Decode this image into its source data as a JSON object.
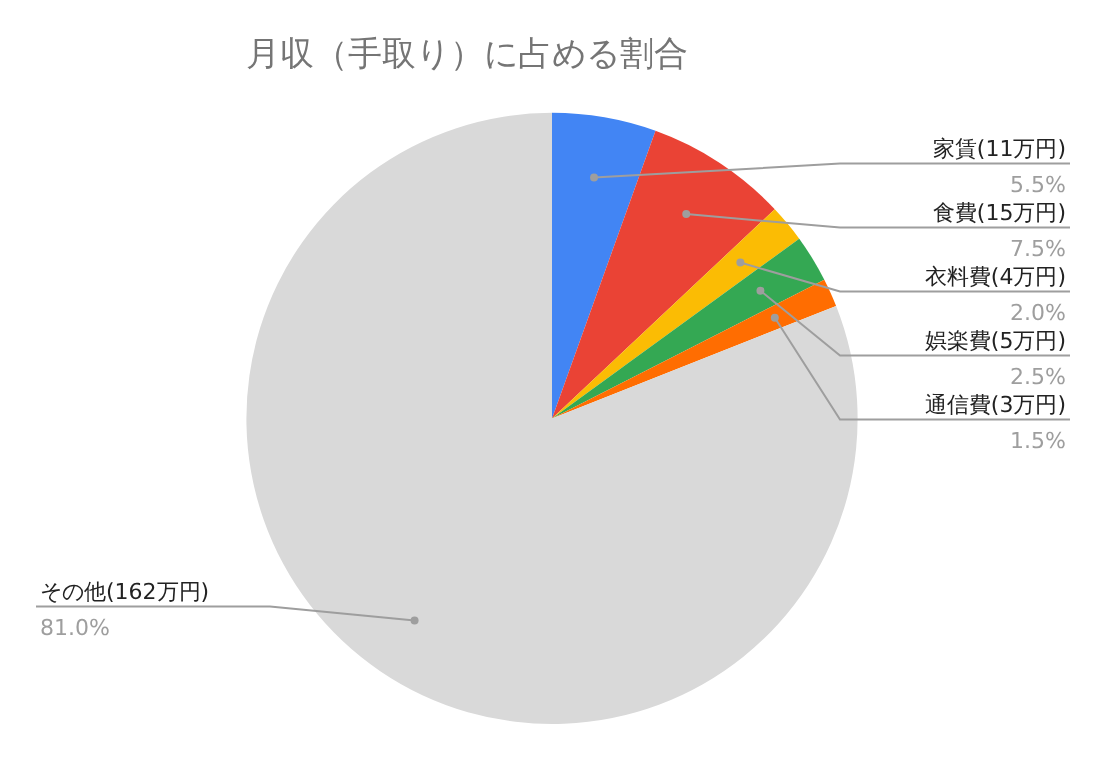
{
  "chart_data": {
    "type": "pie",
    "title": "月収（手取り）に占める割合",
    "categories": [
      "家賃(11万円)",
      "食費(15万円)",
      "衣料費(4万円)",
      "娯楽費(5万円)",
      "通信費(3万円)",
      "その他(162万円)"
    ],
    "values": [
      5.5,
      7.5,
      2.0,
      2.5,
      1.5,
      81.0
    ],
    "value_labels": [
      "5.5%",
      "7.5%",
      "2.0%",
      "2.5%",
      "1.5%",
      "81.0%"
    ],
    "colors": [
      "#4285f4",
      "#ea4335",
      "#fbbc04",
      "#34a853",
      "#ff6d01",
      "#d9d9d9"
    ],
    "legend": false
  }
}
